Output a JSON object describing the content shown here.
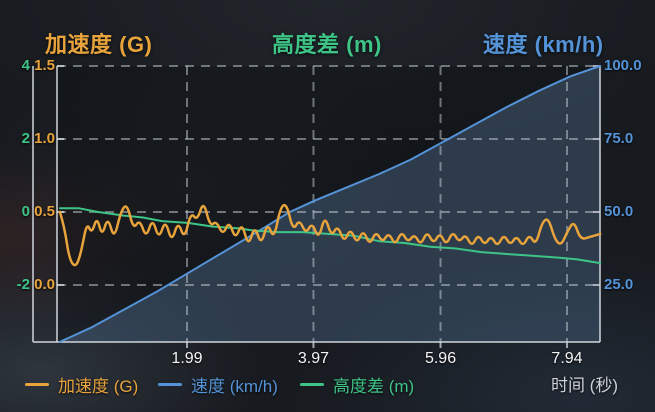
{
  "titles": {
    "accel": "加速度 (G)",
    "height": "高度差 (m)",
    "speed": "速度 (km/h)"
  },
  "colors": {
    "accel": "#e8a33c",
    "speed": "#5593d8",
    "height": "#3ec487",
    "speed_fill": "rgba(108,148,192,0.30)",
    "grid": "rgba(200,208,216,0.50)",
    "axis": "rgba(208,214,222,0.75)",
    "x_tick_text": "#f4f6f8",
    "time_label_text": "#cdd2d8",
    "plot_backdrop": "rgba(8,10,14,0.30)"
  },
  "legend": [
    {
      "label": "加速度 (G)",
      "color": "#e8a33c"
    },
    {
      "label": "速度 (km/h)",
      "color": "#5593d8"
    },
    {
      "label": "高度差 (m)",
      "color": "#3ec487"
    }
  ],
  "x_axis_title": "时间 (秒)",
  "chart_data": {
    "type": "line",
    "x_title": "时间 (秒)",
    "x_ticks": [
      1.99,
      3.97,
      5.96,
      7.94
    ],
    "x_tick_labels": [
      "1.99",
      "3.97",
      "5.96",
      "7.94"
    ],
    "x_range": [
      0,
      8.46
    ],
    "grid": true,
    "legend_position": "bottom",
    "axes": {
      "accel": {
        "title": "加速度 (G)",
        "tick_labels": [
          "1.5",
          "1.0",
          "0.5",
          "0.0"
        ],
        "ticks": [
          1.5,
          1.0,
          0.5,
          0.0
        ],
        "side": "left-inner"
      },
      "height": {
        "title": "高度差 (m)",
        "tick_labels": [
          "4",
          "2",
          "0",
          "-2"
        ],
        "ticks": [
          4,
          2,
          0,
          -2
        ],
        "side": "left-outer"
      },
      "speed": {
        "title": "速度 (km/h)",
        "tick_labels": [
          "100.0",
          "75.0",
          "50.0",
          "25.0"
        ],
        "ticks": [
          100,
          75,
          50,
          25
        ],
        "side": "right"
      }
    },
    "series": [
      {
        "name": "速度 (km/h)",
        "axis": "speed",
        "color": "#5593d8",
        "fill": true,
        "smooth": false,
        "points": [
          [
            0,
            5.5
          ],
          [
            0.5,
            10.5
          ],
          [
            1,
            16.5
          ],
          [
            1.5,
            22.5
          ],
          [
            2,
            29
          ],
          [
            2.5,
            35.5
          ],
          [
            3,
            42
          ],
          [
            3.6,
            50
          ],
          [
            4,
            54
          ],
          [
            4.5,
            58.5
          ],
          [
            5,
            63
          ],
          [
            5.5,
            68
          ],
          [
            6,
            74
          ],
          [
            6.5,
            80
          ],
          [
            7,
            86
          ],
          [
            7.5,
            91.5
          ],
          [
            8,
            96.5
          ],
          [
            8.46,
            100
          ]
        ]
      },
      {
        "name": "高度差 (m)",
        "axis": "height",
        "color": "#3ec487",
        "smooth": false,
        "points": [
          [
            0,
            0.1
          ],
          [
            0.3,
            0.1
          ],
          [
            0.6,
            0
          ],
          [
            1.0,
            -0.1
          ],
          [
            1.3,
            -0.15
          ],
          [
            1.6,
            -0.25
          ],
          [
            2.0,
            -0.3
          ],
          [
            2.4,
            -0.4
          ],
          [
            2.8,
            -0.45
          ],
          [
            3.0,
            -0.5
          ],
          [
            3.4,
            -0.55
          ],
          [
            3.8,
            -0.55
          ],
          [
            4.2,
            -0.6
          ],
          [
            4.6,
            -0.65
          ],
          [
            5.0,
            -0.8
          ],
          [
            5.4,
            -0.85
          ],
          [
            5.8,
            -0.95
          ],
          [
            6.2,
            -1.0
          ],
          [
            6.6,
            -1.1
          ],
          [
            7.0,
            -1.15
          ],
          [
            7.4,
            -1.2
          ],
          [
            7.8,
            -1.25
          ],
          [
            8.1,
            -1.3
          ],
          [
            8.46,
            -1.4
          ]
        ]
      },
      {
        "name": "加速度 (G)",
        "axis": "accel",
        "color": "#e8a33c",
        "smooth": true,
        "points": [
          [
            0,
            0.5
          ],
          [
            0.07,
            0.4
          ],
          [
            0.15,
            0.17
          ],
          [
            0.25,
            0.12
          ],
          [
            0.33,
            0.22
          ],
          [
            0.42,
            0.43
          ],
          [
            0.5,
            0.35
          ],
          [
            0.58,
            0.47
          ],
          [
            0.66,
            0.33
          ],
          [
            0.75,
            0.47
          ],
          [
            0.85,
            0.31
          ],
          [
            0.95,
            0.5
          ],
          [
            1.05,
            0.56
          ],
          [
            1.15,
            0.38
          ],
          [
            1.25,
            0.45
          ],
          [
            1.35,
            0.32
          ],
          [
            1.45,
            0.46
          ],
          [
            1.55,
            0.31
          ],
          [
            1.65,
            0.45
          ],
          [
            1.75,
            0.29
          ],
          [
            1.85,
            0.44
          ],
          [
            1.95,
            0.31
          ],
          [
            2.05,
            0.5
          ],
          [
            2.15,
            0.44
          ],
          [
            2.25,
            0.58
          ],
          [
            2.35,
            0.4
          ],
          [
            2.45,
            0.44
          ],
          [
            2.55,
            0.34
          ],
          [
            2.65,
            0.44
          ],
          [
            2.75,
            0.31
          ],
          [
            2.85,
            0.43
          ],
          [
            2.95,
            0.26
          ],
          [
            3.05,
            0.41
          ],
          [
            3.15,
            0.27
          ],
          [
            3.25,
            0.43
          ],
          [
            3.35,
            0.31
          ],
          [
            3.45,
            0.53
          ],
          [
            3.55,
            0.56
          ],
          [
            3.65,
            0.37
          ],
          [
            3.75,
            0.45
          ],
          [
            3.85,
            0.35
          ],
          [
            3.95,
            0.43
          ],
          [
            4.05,
            0.31
          ],
          [
            4.15,
            0.48
          ],
          [
            4.25,
            0.33
          ],
          [
            4.35,
            0.41
          ],
          [
            4.45,
            0.29
          ],
          [
            4.55,
            0.39
          ],
          [
            4.65,
            0.28
          ],
          [
            4.75,
            0.38
          ],
          [
            4.85,
            0.27
          ],
          [
            4.95,
            0.37
          ],
          [
            5.05,
            0.29
          ],
          [
            5.15,
            0.36
          ],
          [
            5.25,
            0.27
          ],
          [
            5.35,
            0.37
          ],
          [
            5.45,
            0.29
          ],
          [
            5.55,
            0.35
          ],
          [
            5.65,
            0.27
          ],
          [
            5.75,
            0.37
          ],
          [
            5.85,
            0.28
          ],
          [
            5.95,
            0.36
          ],
          [
            6.05,
            0.27
          ],
          [
            6.15,
            0.37
          ],
          [
            6.25,
            0.29
          ],
          [
            6.35,
            0.35
          ],
          [
            6.45,
            0.26
          ],
          [
            6.55,
            0.35
          ],
          [
            6.65,
            0.27
          ],
          [
            6.75,
            0.34
          ],
          [
            6.85,
            0.26
          ],
          [
            6.95,
            0.35
          ],
          [
            7.05,
            0.27
          ],
          [
            7.15,
            0.34
          ],
          [
            7.25,
            0.26
          ],
          [
            7.35,
            0.35
          ],
          [
            7.45,
            0.27
          ],
          [
            7.55,
            0.43
          ],
          [
            7.65,
            0.46
          ],
          [
            7.75,
            0.31
          ],
          [
            7.85,
            0.27
          ],
          [
            7.95,
            0.37
          ],
          [
            8.05,
            0.44
          ],
          [
            8.15,
            0.31
          ],
          [
            8.3,
            0.33
          ],
          [
            8.46,
            0.35
          ]
        ]
      }
    ]
  }
}
